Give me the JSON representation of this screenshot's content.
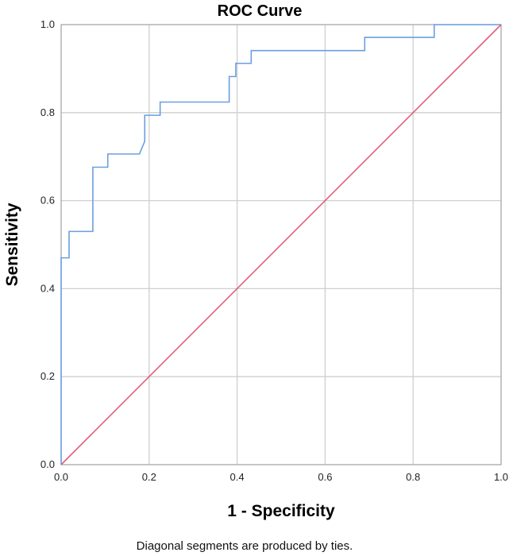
{
  "chart_data": {
    "type": "line",
    "title": "ROC Curve",
    "xlabel": "1 - Specificity",
    "ylabel": "Sensitivity",
    "xlim": [
      0,
      1
    ],
    "ylim": [
      0,
      1
    ],
    "x_ticks": [
      "0.0",
      "0.2",
      "0.4",
      "0.6",
      "0.8",
      "1.0"
    ],
    "y_ticks": [
      "0.0",
      "0.2",
      "0.4",
      "0.6",
      "0.8",
      "1.0"
    ],
    "grid": true,
    "legend": "none",
    "footnote": "Diagonal segments are produced by ties.",
    "series": [
      {
        "color": "#6a9fe0",
        "x": [
          0.0,
          0.0,
          0.006,
          0.006,
          0.018,
          0.018,
          0.072,
          0.072,
          0.106,
          0.106,
          0.178,
          0.19,
          0.19,
          0.225,
          0.225,
          0.382,
          0.382,
          0.397,
          0.397,
          0.432,
          0.432,
          0.69,
          0.69,
          0.848,
          0.848,
          1.0
        ],
        "y": [
          0.0,
          0.47,
          0.47,
          0.47,
          0.47,
          0.53,
          0.53,
          0.676,
          0.676,
          0.706,
          0.706,
          0.735,
          0.794,
          0.794,
          0.824,
          0.824,
          0.882,
          0.882,
          0.912,
          0.912,
          0.941,
          0.941,
          0.971,
          0.971,
          1.0,
          1.0
        ]
      },
      {
        "color": "#e0607a",
        "x": [
          0.0,
          1.0
        ],
        "y": [
          0.0,
          1.0
        ]
      }
    ]
  }
}
